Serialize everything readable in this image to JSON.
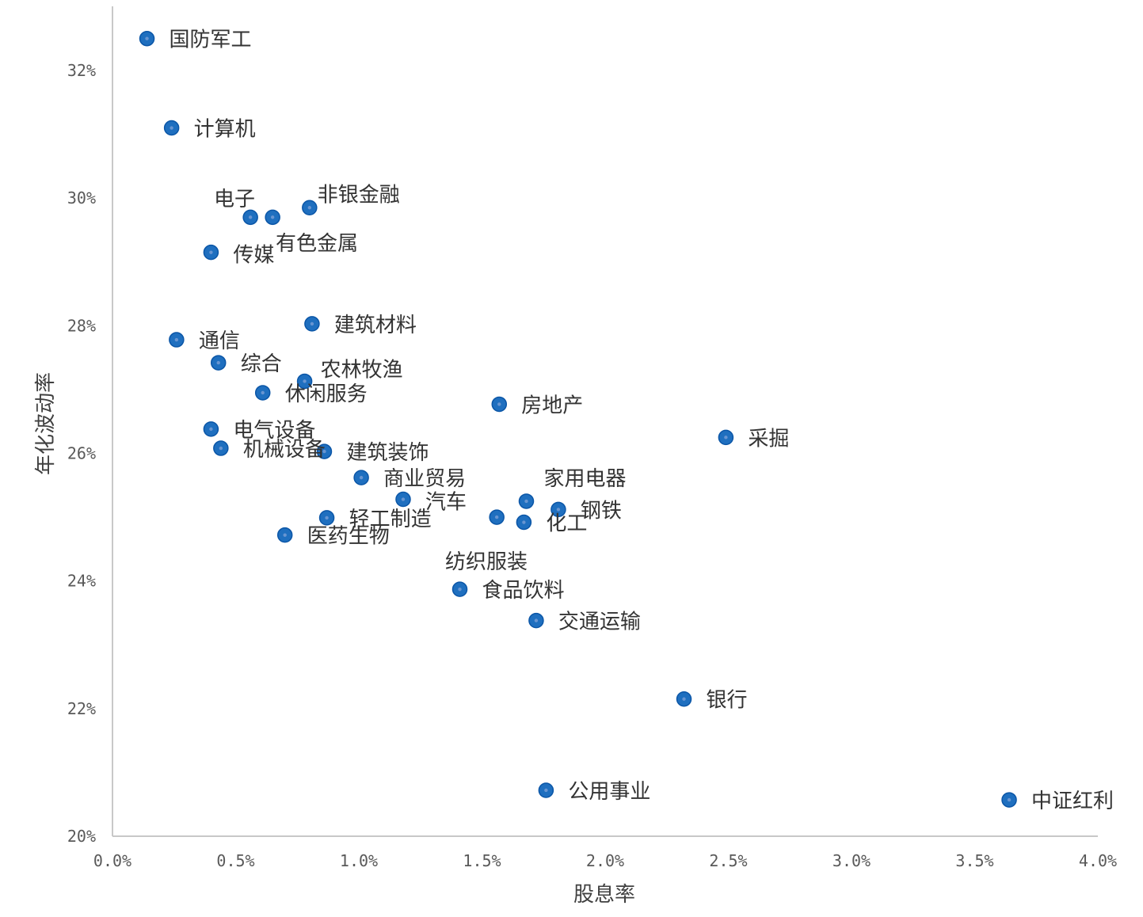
{
  "chart_data": {
    "type": "scatter",
    "xlabel": "股息率",
    "ylabel": "年化波动率",
    "xlim": [
      0,
      4.0
    ],
    "ylim": [
      20,
      33
    ],
    "x_ticks": [
      "0.0%",
      "0.5%",
      "1.0%",
      "1.5%",
      "2.0%",
      "2.5%",
      "3.0%",
      "3.5%",
      "4.0%"
    ],
    "y_ticks": [
      "20%",
      "22%",
      "24%",
      "26%",
      "28%",
      "30%",
      "32%"
    ],
    "grid": false,
    "marker_color": "#1f6fbf",
    "marker_edge_color": "#0b56a7",
    "points": [
      {
        "label": "国防军工",
        "x": 0.14,
        "y": 32.5
      },
      {
        "label": "计算机",
        "x": 0.24,
        "y": 31.1
      },
      {
        "label": "电子",
        "x": 0.56,
        "y": 29.7
      },
      {
        "label": "",
        "x": 0.65,
        "y": 29.7
      },
      {
        "label": "非银金融",
        "x": 0.8,
        "y": 29.85
      },
      {
        "label": "有色金属",
        "x": 0.65,
        "y": 29.7
      },
      {
        "label": "传媒",
        "x": 0.4,
        "y": 29.15
      },
      {
        "label": "建筑材料",
        "x": 0.81,
        "y": 28.03
      },
      {
        "label": "通信",
        "x": 0.26,
        "y": 27.78
      },
      {
        "label": "综合",
        "x": 0.43,
        "y": 27.42
      },
      {
        "label": "农林牧渔",
        "x": 0.78,
        "y": 27.13
      },
      {
        "label": "休闲服务",
        "x": 0.61,
        "y": 26.95
      },
      {
        "label": "房地产",
        "x": 1.57,
        "y": 26.77
      },
      {
        "label": "采掘",
        "x": 2.49,
        "y": 26.25
      },
      {
        "label": "电气设备",
        "x": 0.4,
        "y": 26.38
      },
      {
        "label": "机械设备",
        "x": 0.44,
        "y": 26.08
      },
      {
        "label": "建筑装饰",
        "x": 0.86,
        "y": 26.03
      },
      {
        "label": "商业贸易",
        "x": 1.01,
        "y": 25.62
      },
      {
        "label": "家用电器",
        "x": 1.68,
        "y": 25.25
      },
      {
        "label": "汽车",
        "x": 1.18,
        "y": 25.28
      },
      {
        "label": "钢铁",
        "x": 1.81,
        "y": 25.12
      },
      {
        "label": "轻工制造",
        "x": 0.87,
        "y": 24.99
      },
      {
        "label": "",
        "x": 1.56,
        "y": 25.0
      },
      {
        "label": "化工",
        "x": 1.67,
        "y": 24.92
      },
      {
        "label": "医药生物",
        "x": 0.7,
        "y": 24.72
      },
      {
        "label": "纺织服装",
        "x": 1.41,
        "y": 23.87
      },
      {
        "label": "食品饮料",
        "x": 1.41,
        "y": 23.87
      },
      {
        "label": "交通运输",
        "x": 1.72,
        "y": 23.38
      },
      {
        "label": "银行",
        "x": 2.32,
        "y": 22.15
      },
      {
        "label": "公用事业",
        "x": 1.76,
        "y": 20.72
      },
      {
        "label": "中证红利",
        "x": 3.64,
        "y": 20.57
      }
    ]
  }
}
